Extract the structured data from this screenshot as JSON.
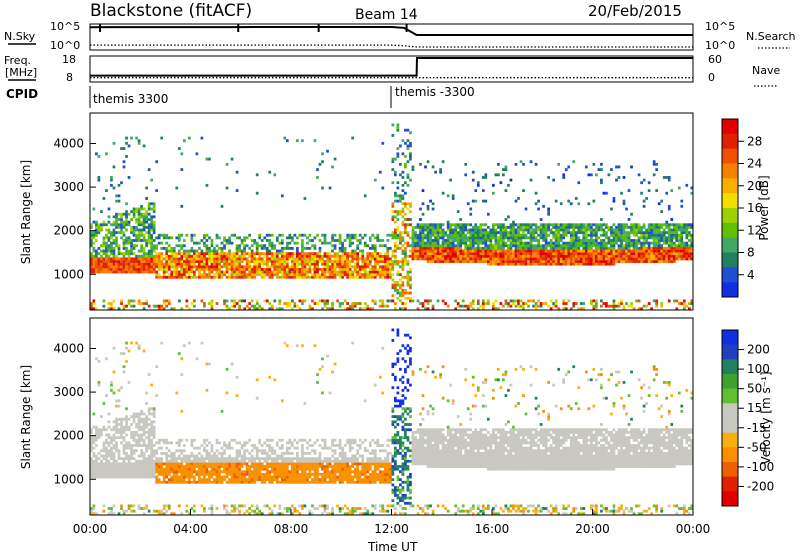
{
  "header": {
    "radar": "Blackstone (fitACF)",
    "beam": "Beam 14",
    "date": "20/Feb/2015"
  },
  "left_labels": {
    "nsky": "N.Sky",
    "freq_line1": "Freq.",
    "freq_line2": "[MHz]",
    "cpid": "CPID"
  },
  "right_labels": {
    "nsearch": "N.Search",
    "nave": "Nave"
  },
  "cpid_labels": [
    "themis 3300",
    "themis -3300"
  ],
  "colors": {
    "power_scale": [
      "#1030e0",
      "#2050d0",
      "#208060",
      "#40a860",
      "#60c000",
      "#a0d000",
      "#f0e000",
      "#f8b000",
      "#f88000",
      "#f05000",
      "#e02000",
      "#e00000"
    ],
    "velocity_scale": [
      "#1030e0",
      "#2040c0",
      "#208060",
      "#40a030",
      "#60c030",
      "#c8c8c0",
      "#c8c8c0",
      "#f8b010",
      "#f89000",
      "#f06000",
      "#e02000",
      "#e00000"
    ]
  },
  "chart_data": [
    {
      "type": "line",
      "title": "",
      "series": [
        {
          "name": "N.Sky",
          "x": [
            "00:00",
            "01:00",
            "02:00",
            "03:00",
            "04:00",
            "05:00",
            "06:00",
            "07:00",
            "08:00",
            "09:00",
            "10:00",
            "11:00",
            "12:00",
            "12:30",
            "13:00",
            "14:00",
            "16:00",
            "18:00",
            "20:00",
            "22:00",
            "24:00"
          ],
          "values": [
            90000,
            95000,
            95000,
            95000,
            95000,
            95000,
            95000,
            100000,
            100000,
            100000,
            100000,
            100000,
            100000,
            60000,
            1000,
            1000,
            1000,
            1000,
            1000,
            1000,
            1000
          ]
        },
        {
          "name": "N.Search",
          "x": [
            "00:00",
            "02:00",
            "04:00",
            "06:00",
            "08:00",
            "10:00",
            "12:00",
            "12:30",
            "13:00",
            "16:00",
            "20:00",
            "24:00"
          ],
          "values": [
            3,
            3,
            3,
            3,
            3,
            3,
            3,
            2,
            1,
            1,
            1,
            1
          ]
        }
      ],
      "yticks_left": [
        "10^5",
        "10^0"
      ],
      "yticks_right": [
        "10^5",
        "10^0"
      ]
    },
    {
      "type": "line",
      "series": [
        {
          "name": "Freq.",
          "x": [
            "00:00",
            "13:00",
            "13:01",
            "24:00"
          ],
          "values": [
            10,
            10,
            18,
            18
          ]
        },
        {
          "name": "Nave",
          "x": [
            "00:00",
            "24:00"
          ],
          "values": [
            1,
            1
          ]
        }
      ],
      "yticks_left": [
        "18",
        "8"
      ],
      "yticks_right": [
        "60",
        "0"
      ]
    },
    {
      "type": "heatmap",
      "ylabel": "Slant Range [km]",
      "colorbar_label": "Power [dB]",
      "colorbar_ticks": [
        "28",
        "24",
        "20",
        "16",
        "12",
        "8",
        "4"
      ],
      "yticks": [
        "1000",
        "2000",
        "3000",
        "4000"
      ],
      "ylim": [
        180,
        4700
      ],
      "color_range": [
        0,
        30
      ],
      "features": [
        {
          "t": [
            0.0,
            2.5
          ],
          "range": [
            1000,
            1300
          ],
          "power": 24
        },
        {
          "t": [
            2.5,
            12.0
          ],
          "range": [
            900,
            1400
          ],
          "power": 22
        },
        {
          "t": [
            0.0,
            2.5
          ],
          "range": [
            1500,
            2200
          ],
          "power": 8
        },
        {
          "t": [
            12.8,
            24.0
          ],
          "range": [
            1200,
            1700
          ],
          "power": 22
        },
        {
          "t": [
            12.8,
            24.0
          ],
          "range": [
            1700,
            2200
          ],
          "power": 8
        }
      ]
    },
    {
      "type": "heatmap",
      "ylabel": "Velocity [m s^-1]",
      "yaxis_label": "Slant Range [km]",
      "colorbar_label": "Velocity [m s⁻¹]",
      "colorbar_ticks": [
        "200",
        "100",
        "50",
        "15",
        "-15",
        "-50",
        "-100",
        "-200"
      ],
      "yticks": [
        "1000",
        "2000",
        "3000",
        "4000"
      ],
      "ylim": [
        180,
        4700
      ],
      "color_range": [
        -250,
        250
      ],
      "xlabel": "Time UT",
      "xticks": [
        "00:00",
        "04:00",
        "08:00",
        "12:00",
        "16:00",
        "20:00",
        "00:00"
      ],
      "features": [
        {
          "t": [
            0.0,
            2.5
          ],
          "range": [
            1000,
            1300
          ],
          "velocity": 0
        },
        {
          "t": [
            2.5,
            12.0
          ],
          "range": [
            900,
            1400
          ],
          "velocity": -60
        },
        {
          "t": [
            12.8,
            24.0
          ],
          "range": [
            1200,
            2200
          ],
          "velocity": 0
        }
      ]
    }
  ]
}
